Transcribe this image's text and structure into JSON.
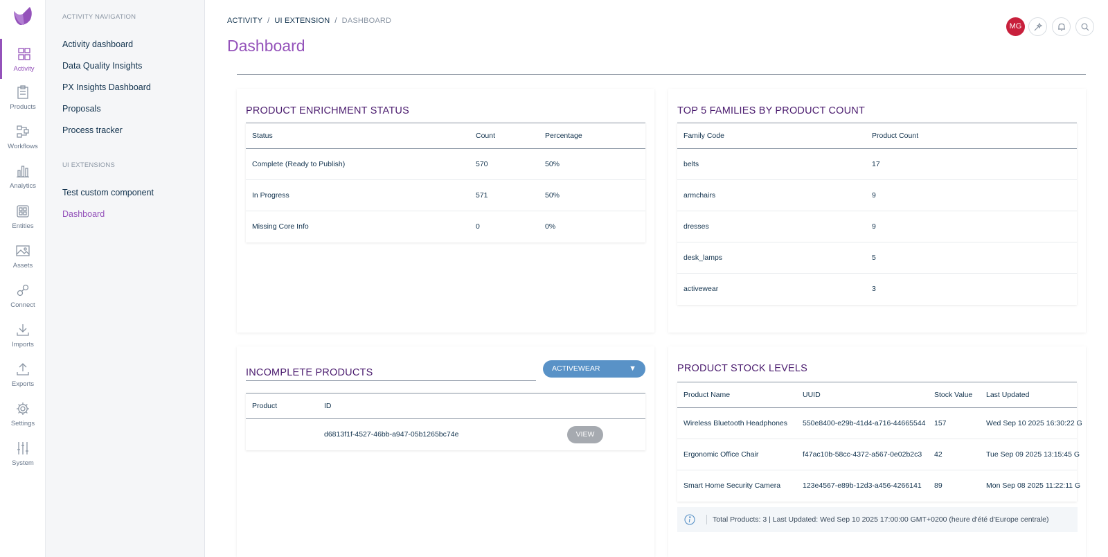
{
  "rail": {
    "items": [
      {
        "label": "Activity",
        "icon": "dashboard-grid-icon"
      },
      {
        "label": "Products",
        "icon": "clipboard-icon"
      },
      {
        "label": "Workflows",
        "icon": "workflow-icon"
      },
      {
        "label": "Analytics",
        "icon": "bar-chart-icon"
      },
      {
        "label": "Entities",
        "icon": "entities-icon"
      },
      {
        "label": "Assets",
        "icon": "image-icon"
      },
      {
        "label": "Connect",
        "icon": "link-icon"
      },
      {
        "label": "Imports",
        "icon": "download-icon"
      },
      {
        "label": "Exports",
        "icon": "upload-icon"
      },
      {
        "label": "Settings",
        "icon": "gear-icon"
      },
      {
        "label": "System",
        "icon": "sliders-icon"
      }
    ],
    "active": "Activity",
    "accent": "#9452ba"
  },
  "subnav": {
    "section1": "ACTIVITY NAVIGATION",
    "links1": [
      "Activity dashboard",
      "Data Quality Insights",
      "PX Insights Dashboard",
      "Proposals",
      "Process tracker"
    ],
    "section2": "UI EXTENSIONS",
    "links2": [
      "Test custom component",
      "Dashboard"
    ]
  },
  "header": {
    "breadcrumb": [
      "ACTIVITY",
      "UI EXTENSION",
      "DASHBOARD"
    ],
    "separator": "/",
    "title": "Dashboard",
    "avatar_initials": "MG",
    "avatar_color": "#c8203c"
  },
  "enrichment": {
    "title": "PRODUCT ENRICHMENT STATUS",
    "columns": [
      "Status",
      "Count",
      "Percentage"
    ],
    "rows": [
      [
        "Complete (Ready to Publish)",
        "570",
        "50%"
      ],
      [
        "In Progress",
        "571",
        "50%"
      ],
      [
        "Missing Core Info",
        "0",
        "0%"
      ]
    ]
  },
  "families": {
    "title": "TOP 5 FAMILIES BY PRODUCT COUNT",
    "columns": [
      "Family Code",
      "Product Count"
    ],
    "rows": [
      [
        "belts",
        "17"
      ],
      [
        "armchairs",
        "9"
      ],
      [
        "dresses",
        "9"
      ],
      [
        "desk_lamps",
        "5"
      ],
      [
        "activewear",
        "3"
      ]
    ]
  },
  "incomplete": {
    "title": "INCOMPLETE PRODUCTS",
    "dropdown_value": "ACTIVEWEAR",
    "dropdown_caret": "▼",
    "columns": [
      "Product",
      "ID"
    ],
    "rows": [
      {
        "product": "",
        "id": "d6813f1f-4527-46bb-a947-05b1265bc74e",
        "action": "VIEW"
      }
    ]
  },
  "stock": {
    "title": "PRODUCT STOCK LEVELS",
    "columns": [
      "Product Name",
      "UUID",
      "Stock Value",
      "Last Updated"
    ],
    "rows": [
      [
        "Wireless Bluetooth Headphones",
        "550e8400-e29b-41d4-a716-44665544",
        "157",
        "Wed Sep 10 2025 16:30:22 G"
      ],
      [
        "Ergonomic Office Chair",
        "f47ac10b-58cc-4372-a567-0e02b2c3",
        "42",
        "Tue Sep 09 2025 13:15:45 G"
      ],
      [
        "Smart Home Security Camera",
        "123e4567-e89b-12d3-a456-4266141",
        "89",
        "Mon Sep 08 2025 11:22:11 G"
      ]
    ],
    "footer": "Total Products: 3 | Last Updated: Wed Sep 10 2025 17:00:00 GMT+0200 (heure d'été d'Europe centrale)"
  }
}
